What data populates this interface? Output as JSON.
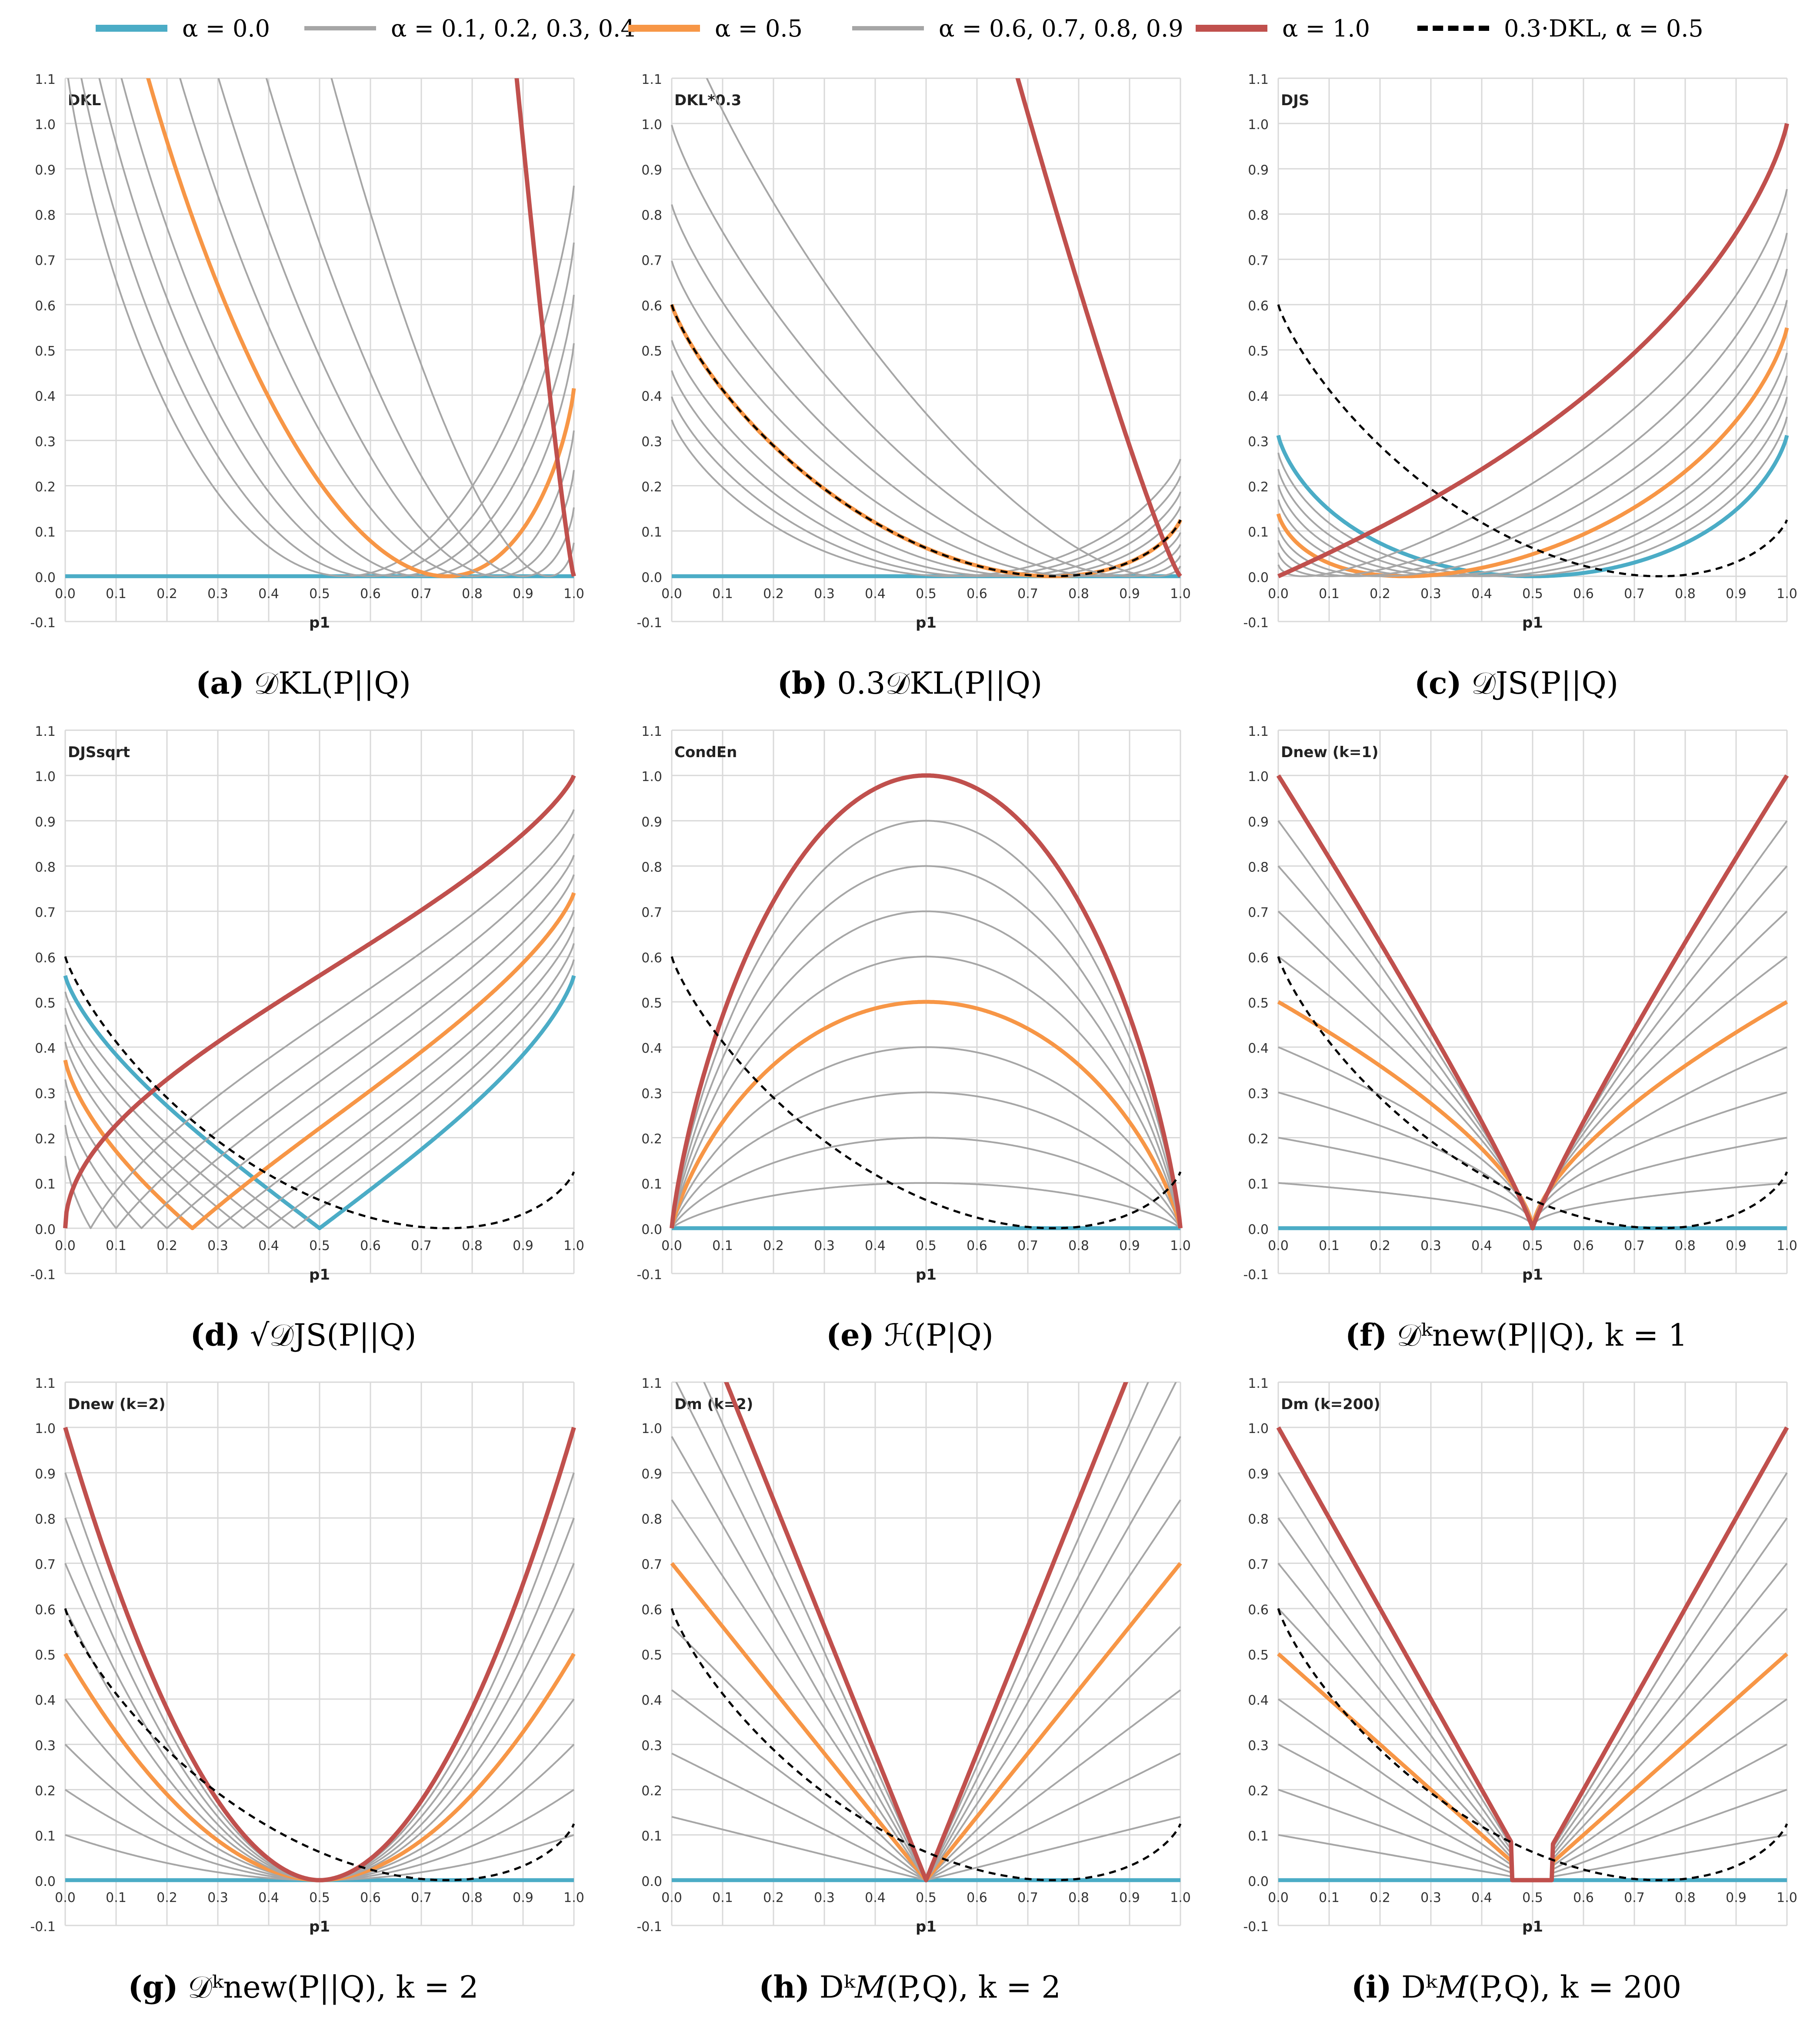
{
  "legend": {
    "items": [
      {
        "label": "α = 0.0",
        "color": "#4BACC6",
        "style": "solid"
      },
      {
        "label": "α = 0.1, 0.2, 0.3, 0.4",
        "color": "#A6A6A6",
        "style": "solid"
      },
      {
        "label": "α = 0.5",
        "color": "#F79646",
        "style": "solid"
      },
      {
        "label": "α = 0.6, 0.7, 0.8, 0.9",
        "color": "#A6A6A6",
        "style": "solid"
      },
      {
        "label": "α = 1.0",
        "color": "#C0504D",
        "style": "solid"
      },
      {
        "label": "0.3·DKL, α = 0.5",
        "color": "#000000",
        "style": "dashed"
      }
    ]
  },
  "colors": {
    "alpha0": "#4BACC6",
    "gray": "#A6A6A6",
    "alpha05": "#F79646",
    "alpha1": "#C0504D",
    "dashed": "#000000",
    "grid": "#D9D9D9"
  },
  "axis": {
    "y_ticks": [
      "1.1",
      "1.0",
      "0.9",
      "0.8",
      "0.7",
      "0.6",
      "0.5",
      "0.4",
      "0.3",
      "0.2",
      "0.1",
      "0.0",
      "-0.1"
    ],
    "x_ticks": [
      "0.0",
      "0.1",
      "0.2",
      "0.3",
      "0.4",
      "0.5",
      "0.6",
      "0.7",
      "0.8",
      "0.9",
      "1.0"
    ],
    "xlabel": "p1"
  },
  "chart_data": [
    {
      "type": "line",
      "title": "DKL",
      "caption": {
        "letter": "(a)",
        "text": "𝒟KL(P||Q)"
      },
      "formula": "kl",
      "scale": 1.0,
      "dashed_ref": false,
      "xlim": [
        0,
        1
      ],
      "ylim": [
        -0.1,
        1.1
      ],
      "alphas": [
        0.0,
        0.1,
        0.2,
        0.3,
        0.4,
        0.5,
        0.6,
        0.7,
        0.8,
        0.9,
        1.0
      ]
    },
    {
      "type": "line",
      "title": "DKL*0.3",
      "caption": {
        "letter": "(b)",
        "text": "0.3𝒟KL(P||Q)"
      },
      "formula": "kl",
      "scale": 0.3,
      "dashed_ref": true,
      "xlim": [
        0,
        1
      ],
      "ylim": [
        -0.1,
        1.1
      ],
      "alphas": [
        0.0,
        0.1,
        0.2,
        0.3,
        0.4,
        0.5,
        0.6,
        0.7,
        0.8,
        0.9,
        1.0
      ]
    },
    {
      "type": "line",
      "title": "DJS",
      "caption": {
        "letter": "(c)",
        "text": "𝒟JS(P||Q)"
      },
      "formula": "js",
      "scale": 1.0,
      "dashed_ref": true,
      "xlim": [
        0,
        1
      ],
      "ylim": [
        -0.1,
        1.1
      ],
      "alphas": [
        0.0,
        0.1,
        0.2,
        0.3,
        0.4,
        0.5,
        0.6,
        0.7,
        0.8,
        0.9,
        1.0
      ]
    },
    {
      "type": "line",
      "title": "DJSsqrt",
      "caption": {
        "letter": "(d)",
        "text": "√𝒟JS(P||Q)"
      },
      "formula": "jssqrt",
      "scale": 1.0,
      "dashed_ref": true,
      "xlim": [
        0,
        1
      ],
      "ylim": [
        -0.1,
        1.1
      ],
      "alphas": [
        0.0,
        0.1,
        0.2,
        0.3,
        0.4,
        0.5,
        0.6,
        0.7,
        0.8,
        0.9,
        1.0
      ]
    },
    {
      "type": "line",
      "title": "CondEn",
      "caption": {
        "letter": "(e)",
        "text": "ℋ(P|Q)"
      },
      "formula": "condent",
      "scale": 1.0,
      "dashed_ref": true,
      "xlim": [
        0,
        1
      ],
      "ylim": [
        -0.1,
        1.1
      ],
      "alphas": [
        0.0,
        0.1,
        0.2,
        0.3,
        0.4,
        0.5,
        0.6,
        0.7,
        0.8,
        0.9,
        1.0
      ]
    },
    {
      "type": "line",
      "title": "Dnew (k=1)",
      "caption": {
        "letter": "(f)",
        "text": "𝒟ᵏnew(P||Q), k = 1"
      },
      "formula": "dnew1",
      "scale": 1.0,
      "dashed_ref": true,
      "xlim": [
        0,
        1
      ],
      "ylim": [
        -0.1,
        1.1
      ],
      "alphas": [
        0.0,
        0.1,
        0.2,
        0.3,
        0.4,
        0.5,
        0.6,
        0.7,
        0.8,
        0.9,
        1.0
      ]
    },
    {
      "type": "line",
      "title": "Dnew (k=2)",
      "caption": {
        "letter": "(g)",
        "text": "𝒟ᵏnew(P||Q), k = 2"
      },
      "formula": "dnew2",
      "scale": 1.0,
      "dashed_ref": true,
      "xlim": [
        0,
        1
      ],
      "ylim": [
        -0.1,
        1.1
      ],
      "alphas": [
        0.0,
        0.1,
        0.2,
        0.3,
        0.4,
        0.5,
        0.6,
        0.7,
        0.8,
        0.9,
        1.0
      ]
    },
    {
      "type": "line",
      "title": "Dm (k=2)",
      "caption": {
        "letter": "(h)",
        "text": "Dᵏ𝑀(P,Q), k = 2"
      },
      "formula": "dm2",
      "scale": 1.0,
      "dashed_ref": true,
      "xlim": [
        0,
        1
      ],
      "ylim": [
        -0.1,
        1.1
      ],
      "alphas": [
        0.0,
        0.1,
        0.2,
        0.3,
        0.4,
        0.5,
        0.6,
        0.7,
        0.8,
        0.9,
        1.0
      ]
    },
    {
      "type": "line",
      "title": "Dm (k=200)",
      "caption": {
        "letter": "(i)",
        "text": "Dᵏ𝑀(P,Q), k = 200"
      },
      "formula": "dm200",
      "scale": 1.0,
      "dashed_ref": true,
      "xlim": [
        0,
        1
      ],
      "ylim": [
        -0.1,
        1.1
      ],
      "alphas": [
        0.0,
        0.1,
        0.2,
        0.3,
        0.4,
        0.5,
        0.6,
        0.7,
        0.8,
        0.9,
        1.0
      ]
    }
  ]
}
